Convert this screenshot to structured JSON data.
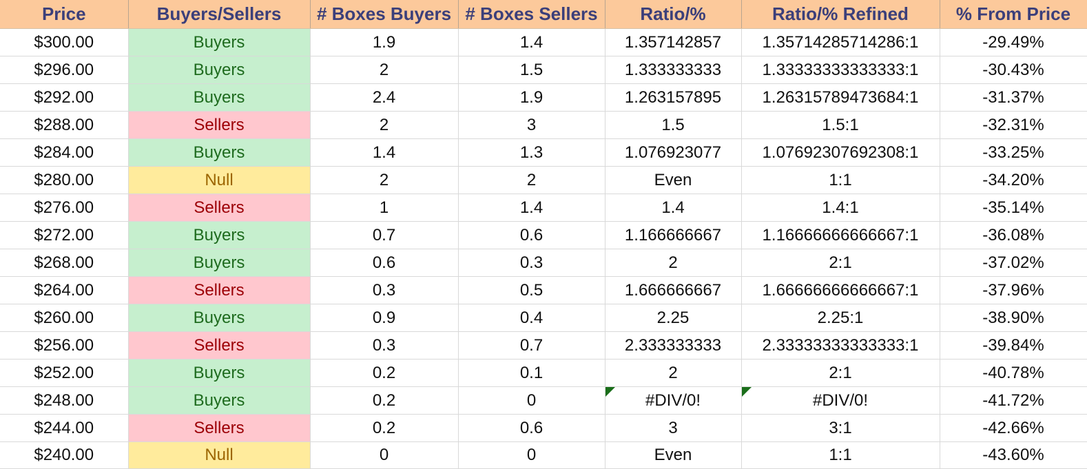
{
  "headers": [
    "Price",
    "Buyers/Sellers",
    "# Boxes Buyers",
    "# Boxes Sellers",
    "Ratio/%",
    "Ratio/% Refined",
    "% From Price"
  ],
  "status_colors": {
    "Buyers": {
      "bg": "#c6efce",
      "fg": "#1e6b1e"
    },
    "Sellers": {
      "bg": "#ffc7ce",
      "fg": "#9c0006"
    },
    "Null": {
      "bg": "#ffeb9c",
      "fg": "#9c6500"
    }
  },
  "header_bg": "#fcc99b",
  "header_fg": "#3b3f7a",
  "error_flag_color": "#1a6e1a",
  "rows": [
    {
      "price": "$300.00",
      "side": "Buyers",
      "boxes_buyers": "1.9",
      "boxes_sellers": "1.4",
      "ratio": "1.357142857",
      "ratio_refined": "1.35714285714286:1",
      "from_price": "-29.49%"
    },
    {
      "price": "$296.00",
      "side": "Buyers",
      "boxes_buyers": "2",
      "boxes_sellers": "1.5",
      "ratio": "1.333333333",
      "ratio_refined": "1.33333333333333:1",
      "from_price": "-30.43%"
    },
    {
      "price": "$292.00",
      "side": "Buyers",
      "boxes_buyers": "2.4",
      "boxes_sellers": "1.9",
      "ratio": "1.263157895",
      "ratio_refined": "1.26315789473684:1",
      "from_price": "-31.37%"
    },
    {
      "price": "$288.00",
      "side": "Sellers",
      "boxes_buyers": "2",
      "boxes_sellers": "3",
      "ratio": "1.5",
      "ratio_refined": "1.5:1",
      "from_price": "-32.31%"
    },
    {
      "price": "$284.00",
      "side": "Buyers",
      "boxes_buyers": "1.4",
      "boxes_sellers": "1.3",
      "ratio": "1.076923077",
      "ratio_refined": "1.07692307692308:1",
      "from_price": "-33.25%"
    },
    {
      "price": "$280.00",
      "side": "Null",
      "boxes_buyers": "2",
      "boxes_sellers": "2",
      "ratio": "Even",
      "ratio_refined": "1:1",
      "from_price": "-34.20%"
    },
    {
      "price": "$276.00",
      "side": "Sellers",
      "boxes_buyers": "1",
      "boxes_sellers": "1.4",
      "ratio": "1.4",
      "ratio_refined": "1.4:1",
      "from_price": "-35.14%"
    },
    {
      "price": "$272.00",
      "side": "Buyers",
      "boxes_buyers": "0.7",
      "boxes_sellers": "0.6",
      "ratio": "1.166666667",
      "ratio_refined": "1.16666666666667:1",
      "from_price": "-36.08%"
    },
    {
      "price": "$268.00",
      "side": "Buyers",
      "boxes_buyers": "0.6",
      "boxes_sellers": "0.3",
      "ratio": "2",
      "ratio_refined": "2:1",
      "from_price": "-37.02%"
    },
    {
      "price": "$264.00",
      "side": "Sellers",
      "boxes_buyers": "0.3",
      "boxes_sellers": "0.5",
      "ratio": "1.666666667",
      "ratio_refined": "1.66666666666667:1",
      "from_price": "-37.96%"
    },
    {
      "price": "$260.00",
      "side": "Buyers",
      "boxes_buyers": "0.9",
      "boxes_sellers": "0.4",
      "ratio": "2.25",
      "ratio_refined": "2.25:1",
      "from_price": "-38.90%"
    },
    {
      "price": "$256.00",
      "side": "Sellers",
      "boxes_buyers": "0.3",
      "boxes_sellers": "0.7",
      "ratio": "2.333333333",
      "ratio_refined": "2.33333333333333:1",
      "from_price": "-39.84%"
    },
    {
      "price": "$252.00",
      "side": "Buyers",
      "boxes_buyers": "0.2",
      "boxes_sellers": "0.1",
      "ratio": "2",
      "ratio_refined": "2:1",
      "from_price": "-40.78%"
    },
    {
      "price": "$248.00",
      "side": "Buyers",
      "boxes_buyers": "0.2",
      "boxes_sellers": "0",
      "ratio": "#DIV/0!",
      "ratio_refined": "#DIV/0!",
      "from_price": "-41.72%",
      "error": true
    },
    {
      "price": "$244.00",
      "side": "Sellers",
      "boxes_buyers": "0.2",
      "boxes_sellers": "0.6",
      "ratio": "3",
      "ratio_refined": "3:1",
      "from_price": "-42.66%"
    },
    {
      "price": "$240.00",
      "side": "Null",
      "boxes_buyers": "0",
      "boxes_sellers": "0",
      "ratio": "Even",
      "ratio_refined": "1:1",
      "from_price": "-43.60%"
    }
  ]
}
